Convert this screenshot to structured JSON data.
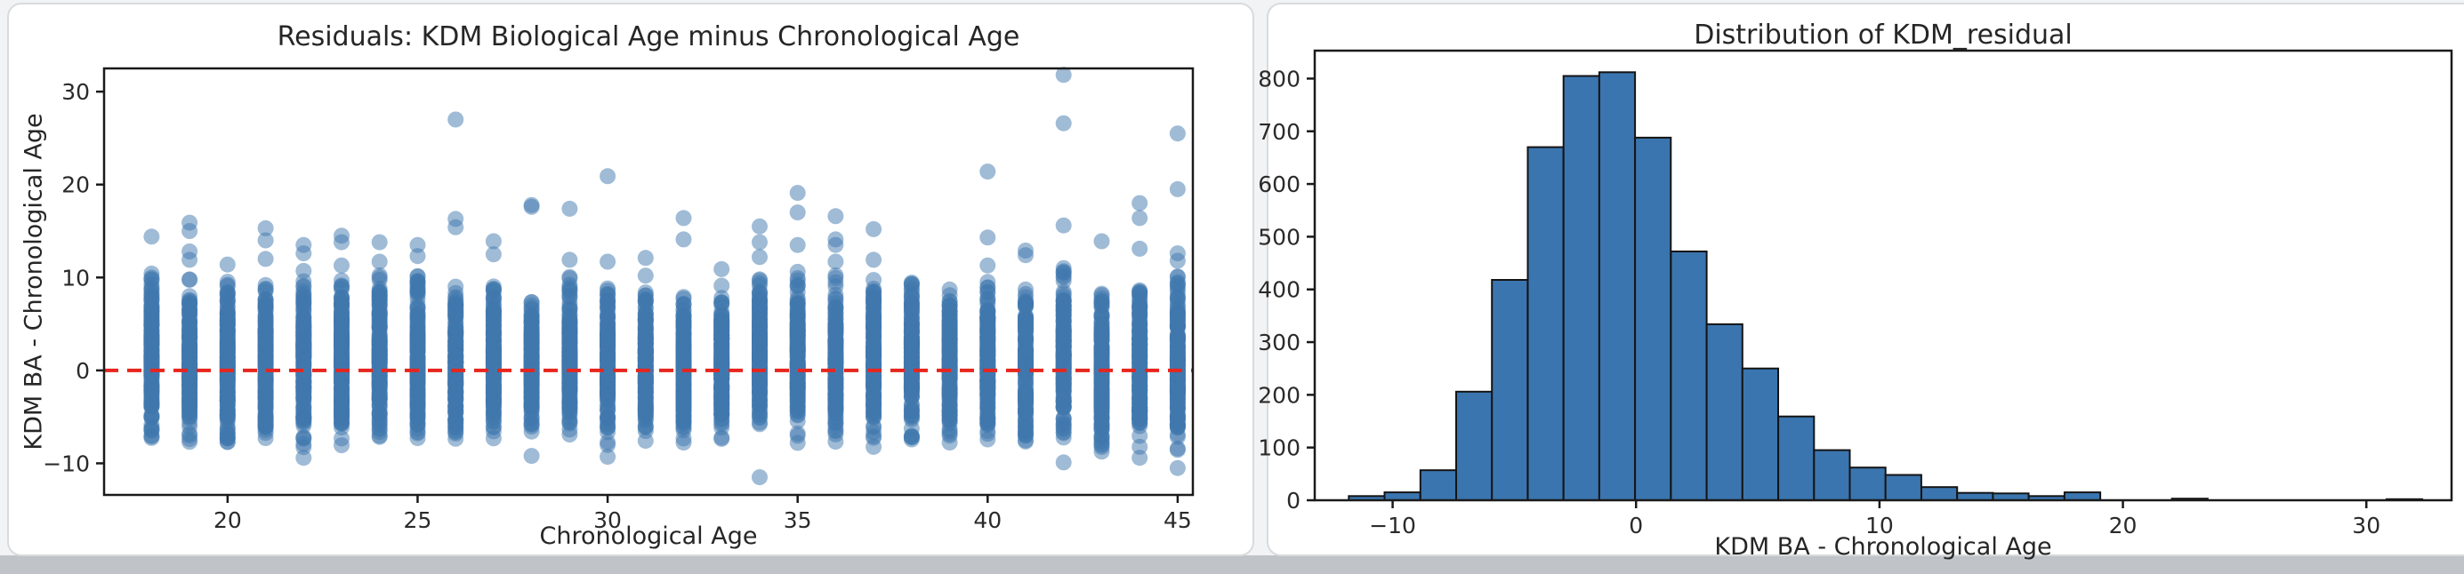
{
  "page": {
    "background": "#f2f3f5",
    "bottom_band_color": "#c0c3c7",
    "card_color": "#ffffff",
    "card_border_color": "#d8dadc",
    "spine_color": "#1a1a1a",
    "text_color": "#262626"
  },
  "chart_data": [
    {
      "type": "scatter",
      "title": "Residuals: KDM Biological Age minus Chronological Age",
      "xlabel": "Chronological Age",
      "ylabel": "KDM BA - Chronological Age",
      "x_ticks": [
        20,
        25,
        30,
        35,
        40,
        45
      ],
      "y_ticks": [
        30,
        20,
        10,
        0,
        -10
      ],
      "xlim": [
        16.75,
        45.4
      ],
      "ylim": [
        -13.4,
        32.5
      ],
      "grid": false,
      "point_color": "#3f77ae",
      "point_opacity": 0.5,
      "point_radius": 9,
      "points_per_age": 170,
      "zero_line": {
        "y": 0,
        "color": "#e8251d",
        "style": "dashed"
      },
      "strips": [
        {
          "age": 18,
          "core": [
            -7.9,
            10.7
          ],
          "above": [
            14.4
          ],
          "below": []
        },
        {
          "age": 19,
          "core": [
            -8.2,
            9.9
          ],
          "above": [
            15.9,
            15.0,
            12.8,
            11.9
          ],
          "below": []
        },
        {
          "age": 20,
          "core": [
            -8.9,
            9.8
          ],
          "above": [
            11.4
          ],
          "below": []
        },
        {
          "age": 21,
          "core": [
            -8.3,
            10.3
          ],
          "above": [
            15.3,
            14.0,
            12.0
          ],
          "below": []
        },
        {
          "age": 22,
          "core": [
            -8.7,
            10.8
          ],
          "above": [
            13.5,
            12.6
          ],
          "below": [
            -9.4
          ]
        },
        {
          "age": 23,
          "core": [
            -8.1,
            10.9
          ],
          "above": [
            14.5,
            13.8,
            11.3
          ],
          "below": []
        },
        {
          "age": 24,
          "core": [
            -7.9,
            10.8
          ],
          "above": [
            13.8,
            11.7
          ],
          "below": []
        },
        {
          "age": 25,
          "core": [
            -8.0,
            10.6
          ],
          "above": [
            13.5,
            12.3
          ],
          "below": []
        },
        {
          "age": 26,
          "core": [
            -7.6,
            9.9
          ],
          "above": [
            27.0,
            16.3,
            15.4
          ],
          "below": []
        },
        {
          "age": 27,
          "core": [
            -7.6,
            9.6
          ],
          "above": [
            13.9,
            12.5
          ],
          "below": []
        },
        {
          "age": 28,
          "core": [
            -8.0,
            7.9
          ],
          "above": [
            17.8,
            17.6
          ],
          "below": [
            -9.2
          ]
        },
        {
          "age": 29,
          "core": [
            -7.4,
            10.0
          ],
          "above": [
            17.4,
            11.9
          ],
          "below": []
        },
        {
          "age": 30,
          "core": [
            -8.2,
            10.5
          ],
          "above": [
            20.9,
            11.7
          ],
          "below": [
            -9.3
          ]
        },
        {
          "age": 31,
          "core": [
            -8.6,
            9.3
          ],
          "above": [
            12.1,
            10.2
          ],
          "below": []
        },
        {
          "age": 32,
          "core": [
            -8.2,
            9.0
          ],
          "above": [
            16.4,
            14.1
          ],
          "below": []
        },
        {
          "age": 33,
          "core": [
            -8.0,
            9.2
          ],
          "above": [
            10.9
          ],
          "below": []
        },
        {
          "age": 34,
          "core": [
            -7.9,
            10.9
          ],
          "above": [
            15.5,
            13.8,
            12.2
          ],
          "below": [
            -11.5
          ]
        },
        {
          "age": 35,
          "core": [
            -7.9,
            11.0
          ],
          "above": [
            19.1,
            17.0,
            13.5
          ],
          "below": []
        },
        {
          "age": 36,
          "core": [
            -8.2,
            10.4
          ],
          "above": [
            16.6,
            14.1,
            13.5,
            11.7
          ],
          "below": []
        },
        {
          "age": 37,
          "core": [
            -8.3,
            10.8
          ],
          "above": [
            15.2,
            11.9
          ],
          "below": []
        },
        {
          "age": 38,
          "core": [
            -8.3,
            10.9
          ],
          "above": [],
          "below": []
        },
        {
          "age": 39,
          "core": [
            -8.6,
            9.5
          ],
          "above": [],
          "below": []
        },
        {
          "age": 40,
          "core": [
            -8.1,
            10.5
          ],
          "above": [
            21.4,
            14.3,
            11.3
          ],
          "below": []
        },
        {
          "age": 41,
          "core": [
            -8.8,
            10.2
          ],
          "above": [
            12.9,
            12.4
          ],
          "below": []
        },
        {
          "age": 42,
          "core": [
            -8.3,
            11.9
          ],
          "above": [
            31.8,
            26.6,
            15.6
          ],
          "below": [
            -9.9
          ]
        },
        {
          "age": 43,
          "core": [
            -9.0,
            10.4
          ],
          "above": [
            13.9
          ],
          "below": []
        },
        {
          "age": 44,
          "core": [
            -8.7,
            9.8
          ],
          "above": [
            18.0,
            16.4,
            13.1
          ],
          "below": [
            -9.4
          ]
        },
        {
          "age": 45,
          "core": [
            -9.3,
            10.5
          ],
          "above": [
            25.5,
            19.5,
            12.6,
            11.8
          ],
          "below": [
            -10.5
          ]
        }
      ]
    },
    {
      "type": "bar",
      "title": "Distribution of KDM_residual",
      "xlabel": "KDM BA - Chronological Age",
      "x_ticks": [
        -10,
        0,
        10,
        20,
        30
      ],
      "y_ticks": [
        0,
        100,
        200,
        300,
        400,
        500,
        600,
        700,
        800
      ],
      "xlim": [
        -13.2,
        33.5
      ],
      "ylim": [
        0,
        853
      ],
      "grid": false,
      "bar_color": "#3b75af",
      "bar_edge_color": "#141414",
      "bin_start": -11.8,
      "bin_width": 1.47,
      "counts": [
        8,
        15,
        57,
        206,
        418,
        670,
        805,
        812,
        688,
        472,
        334,
        250,
        159,
        95,
        62,
        48,
        25,
        14,
        13,
        8,
        15,
        0,
        0,
        3,
        0,
        0,
        0,
        0,
        0,
        2
      ]
    }
  ]
}
